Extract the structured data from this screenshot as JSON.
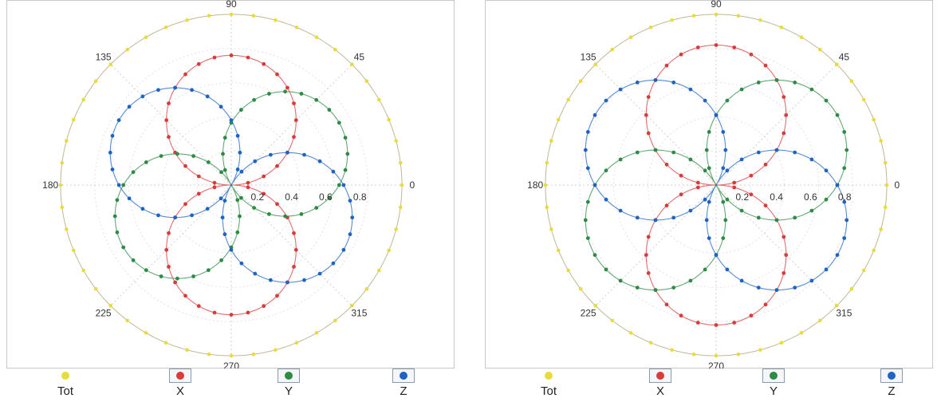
{
  "colors": {
    "Tot": "#e8dc3a",
    "X": "#d93b3b",
    "Y": "#2e8b45",
    "Z": "#1f63c4",
    "grid": "#cfcfcf"
  },
  "chart_data": [
    {
      "type": "polar-line",
      "angle_ticks": [
        "90",
        "45",
        "0",
        "315",
        "270",
        "225",
        "180",
        "135"
      ],
      "radial_ticks": [
        "0.2",
        "0.4",
        "0.6",
        "0.8"
      ],
      "rlim": [
        0,
        1
      ],
      "grid": true,
      "legend_position": "bottom",
      "series": [
        {
          "name": "Tot",
          "pattern": "r = 1.0 (constant)",
          "color": "#e8dc3a"
        },
        {
          "name": "X",
          "pattern": "r = 0.76·|sin(θ)|",
          "color": "#d93b3b"
        },
        {
          "name": "Y",
          "pattern": "r = 0.73·|sin(θ+60°)|",
          "color": "#2e8b45"
        },
        {
          "name": "Z",
          "pattern": "r = 0.76·|sin(θ−60°)|",
          "color": "#1f63c4"
        }
      ]
    },
    {
      "type": "polar-line",
      "angle_ticks": [
        "90",
        "45",
        "0",
        "315",
        "270",
        "225",
        "180",
        "135"
      ],
      "radial_ticks": [
        "0.2",
        "0.4",
        "0.6",
        "0.8"
      ],
      "rlim": [
        0,
        1
      ],
      "grid": true,
      "legend_position": "bottom",
      "series": [
        {
          "name": "Tot",
          "pattern": "r = 1.0 (constant)",
          "color": "#e8dc3a"
        },
        {
          "name": "X",
          "pattern": "r = 0.82·|sin(θ)|",
          "color": "#d93b3b"
        },
        {
          "name": "Y",
          "pattern": "r = 0.82·|sin(θ+60°)|",
          "color": "#2e8b45"
        },
        {
          "name": "Z",
          "pattern": "r = 0.82·|sin(θ−60°)|",
          "color": "#1f63c4"
        }
      ]
    }
  ],
  "legend": [
    "Tot",
    "X",
    "Y",
    "Z"
  ]
}
